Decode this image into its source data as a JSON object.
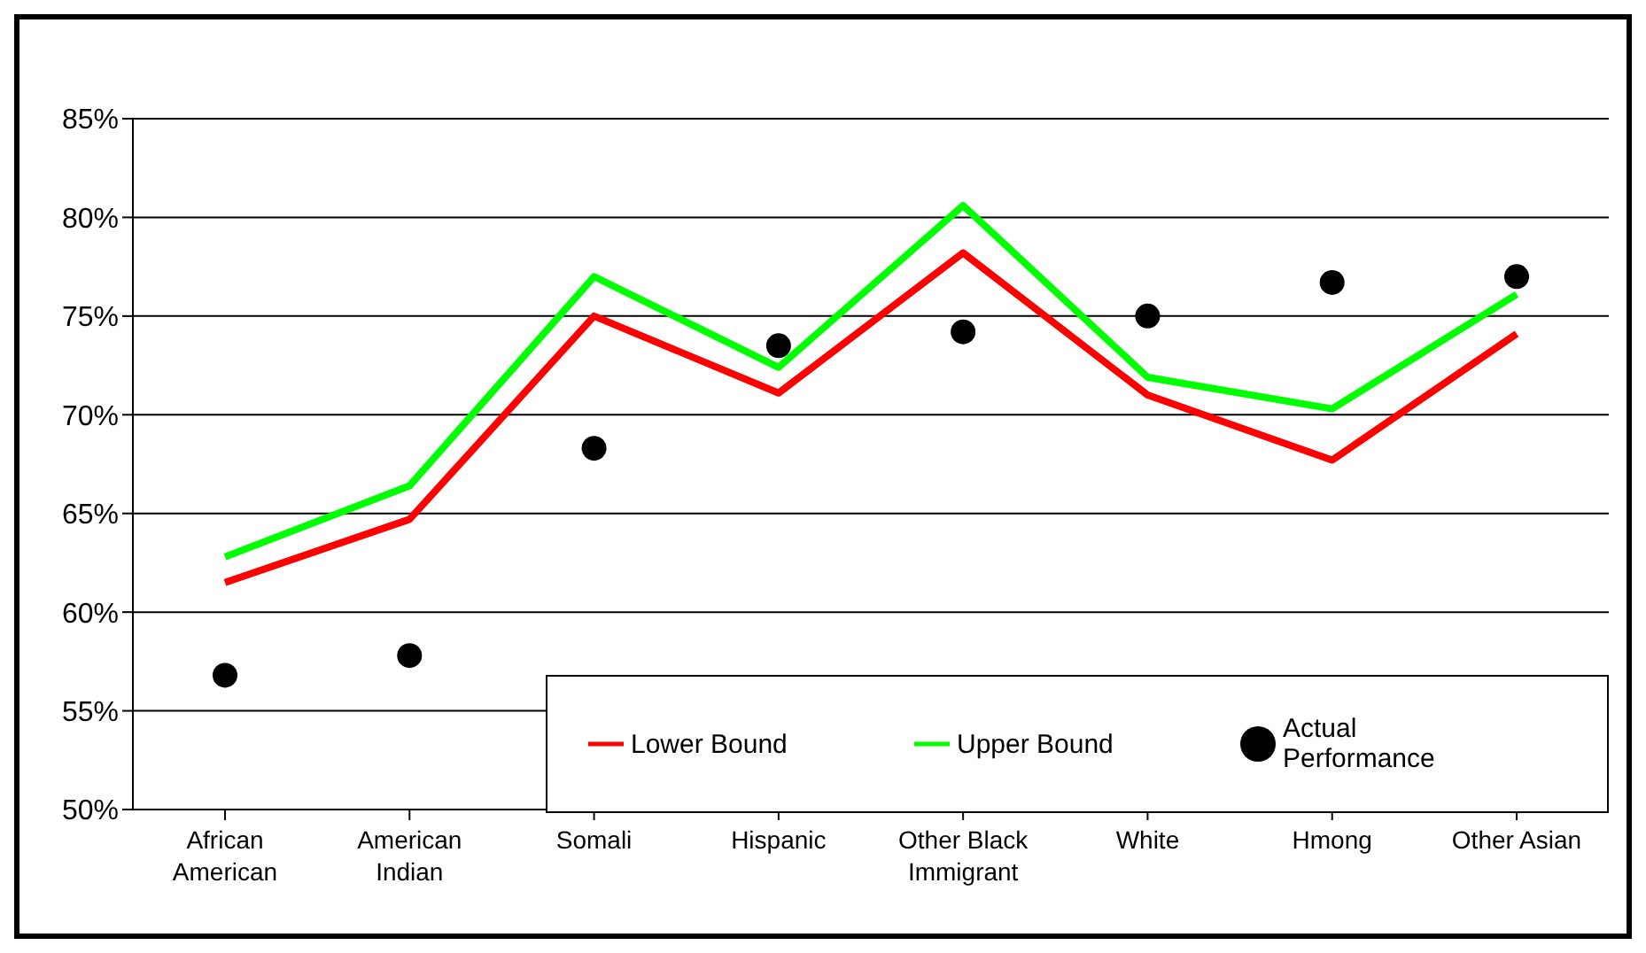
{
  "chart_data": {
    "type": "line",
    "categories": [
      "African American",
      "American Indian",
      "Somali",
      "Hispanic",
      "Other Black Immigrant",
      "White",
      "Hmong",
      "Other Asian"
    ],
    "series": [
      {
        "name": "Lower Bound",
        "type": "line",
        "color": "#ff0000",
        "marker": "none",
        "values": [
          61.5,
          64.7,
          75.0,
          71.1,
          78.2,
          71.0,
          67.7,
          74.1
        ]
      },
      {
        "name": "Upper Bound",
        "type": "line",
        "color": "#00ff00",
        "marker": "none",
        "values": [
          62.8,
          66.4,
          77.0,
          72.4,
          80.6,
          71.9,
          70.3,
          76.1
        ]
      },
      {
        "name": "Actual Performance",
        "type": "scatter",
        "color": "#000000",
        "marker": "circle",
        "values": [
          56.8,
          57.8,
          68.3,
          73.5,
          74.2,
          75.0,
          76.7,
          77.0
        ]
      }
    ],
    "ylim": [
      50,
      85
    ],
    "yticks": [
      {
        "value": 50,
        "label": "50%"
      },
      {
        "value": 55,
        "label": "55%"
      },
      {
        "value": 60,
        "label": "60%"
      },
      {
        "value": 65,
        "label": "65%"
      },
      {
        "value": 70,
        "label": "70%"
      },
      {
        "value": 75,
        "label": "75%"
      },
      {
        "value": 80,
        "label": "80%"
      },
      {
        "value": 85,
        "label": "85%"
      }
    ],
    "grid": "y",
    "legend": "bottom right"
  }
}
